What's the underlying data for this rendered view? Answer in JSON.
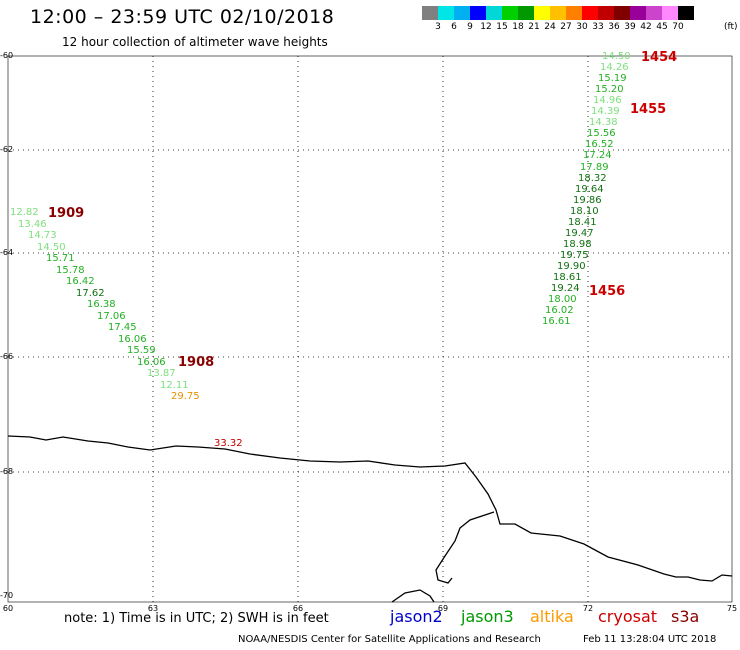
{
  "header": {
    "title": "12:00 – 23:59 UTC 02/10/2018",
    "subtitle": "12 hour collection of altimeter wave heights"
  },
  "scale": {
    "colors": [
      "#808080",
      "#00e5e5",
      "#00b0f0",
      "#0000ff",
      "#00d8d8",
      "#00d000",
      "#009a00",
      "#ffff00",
      "#ffc000",
      "#ff8000",
      "#ff0000",
      "#c00000",
      "#800000",
      "#990099",
      "#cc44cc",
      "#ff88ff",
      "#000000"
    ],
    "labels": [
      "3",
      "6",
      "9",
      "12",
      "15",
      "18",
      "21",
      "24",
      "27",
      "30",
      "33",
      "36",
      "39",
      "42",
      "45",
      "70"
    ],
    "unit": "(ft)"
  },
  "axes": {
    "lat_labels": [
      "-60",
      "-62",
      "-64",
      "-66",
      "-68",
      "-70"
    ],
    "lon_labels": [
      "60",
      "63",
      "66",
      "69",
      "72",
      "75"
    ]
  },
  "pass_labels": [
    "1454",
    "1455",
    "1456",
    "1909",
    "1908"
  ],
  "track_right": [
    {
      "v": "14.50",
      "c": "#7ee07e"
    },
    {
      "v": "14.26",
      "c": "#7ee07e"
    },
    {
      "v": "15.19",
      "c": "#22b022"
    },
    {
      "v": "15.20",
      "c": "#22b022"
    },
    {
      "v": "14.96",
      "c": "#7ee07e"
    },
    {
      "v": "14.39",
      "c": "#7ee07e"
    },
    {
      "v": "14.38",
      "c": "#7ee07e"
    },
    {
      "v": "15.56",
      "c": "#22b022"
    },
    {
      "v": "16.52",
      "c": "#22b022"
    },
    {
      "v": "17.24",
      "c": "#22b022"
    },
    {
      "v": "17.89",
      "c": "#22b022"
    },
    {
      "v": "18.32",
      "c": "#107010"
    },
    {
      "v": "19.64",
      "c": "#107010"
    },
    {
      "v": "19.86",
      "c": "#107010"
    },
    {
      "v": "18.10",
      "c": "#107010"
    },
    {
      "v": "18.41",
      "c": "#107010"
    },
    {
      "v": "19.47",
      "c": "#107010"
    },
    {
      "v": "18.98",
      "c": "#107010"
    },
    {
      "v": "19.75",
      "c": "#107010"
    },
    {
      "v": "19.90",
      "c": "#107010"
    },
    {
      "v": "18.61",
      "c": "#107010"
    },
    {
      "v": "19.24",
      "c": "#107010"
    },
    {
      "v": "18.00",
      "c": "#22b022"
    },
    {
      "v": "16.02",
      "c": "#22b022"
    },
    {
      "v": "16.61",
      "c": "#22b022"
    }
  ],
  "track_left": [
    {
      "v": "12.82",
      "c": "#7ee07e"
    },
    {
      "v": "13.46",
      "c": "#7ee07e"
    },
    {
      "v": "14.73",
      "c": "#7ee07e"
    },
    {
      "v": "14.50",
      "c": "#7ee07e"
    },
    {
      "v": "15.71",
      "c": "#22b022"
    },
    {
      "v": "15.78",
      "c": "#22b022"
    },
    {
      "v": "16.42",
      "c": "#22b022"
    },
    {
      "v": "17.62",
      "c": "#107010"
    },
    {
      "v": "16.38",
      "c": "#22b022"
    },
    {
      "v": "17.06",
      "c": "#22b022"
    },
    {
      "v": "17.45",
      "c": "#22b022"
    },
    {
      "v": "16.06",
      "c": "#22b022"
    },
    {
      "v": "15.59",
      "c": "#22b022"
    },
    {
      "v": "16.06",
      "c": "#22b022"
    },
    {
      "v": "13.87",
      "c": "#7ee07e"
    },
    {
      "v": "12.11",
      "c": "#7ee07e"
    },
    {
      "v": "29.75",
      "c": "#e69100"
    }
  ],
  "coast_value": {
    "v": "33.32",
    "c": "#c00000"
  },
  "footer": {
    "note": "note:  1) Time is in UTC;  2) SWH is in feet",
    "legend": [
      {
        "label": "jason2",
        "color": "#0000cc"
      },
      {
        "label": "jason3",
        "color": "#009900"
      },
      {
        "label": "altika",
        "color": "#ff9900"
      },
      {
        "label": "cryosat",
        "color": "#cc0000"
      },
      {
        "label": "s3a",
        "color": "#880000"
      }
    ],
    "credit": "NOAA/NESDIS Center for Satellite Applications and Research",
    "timestamp": "Feb 11 13:28:04 UTC 2018"
  }
}
